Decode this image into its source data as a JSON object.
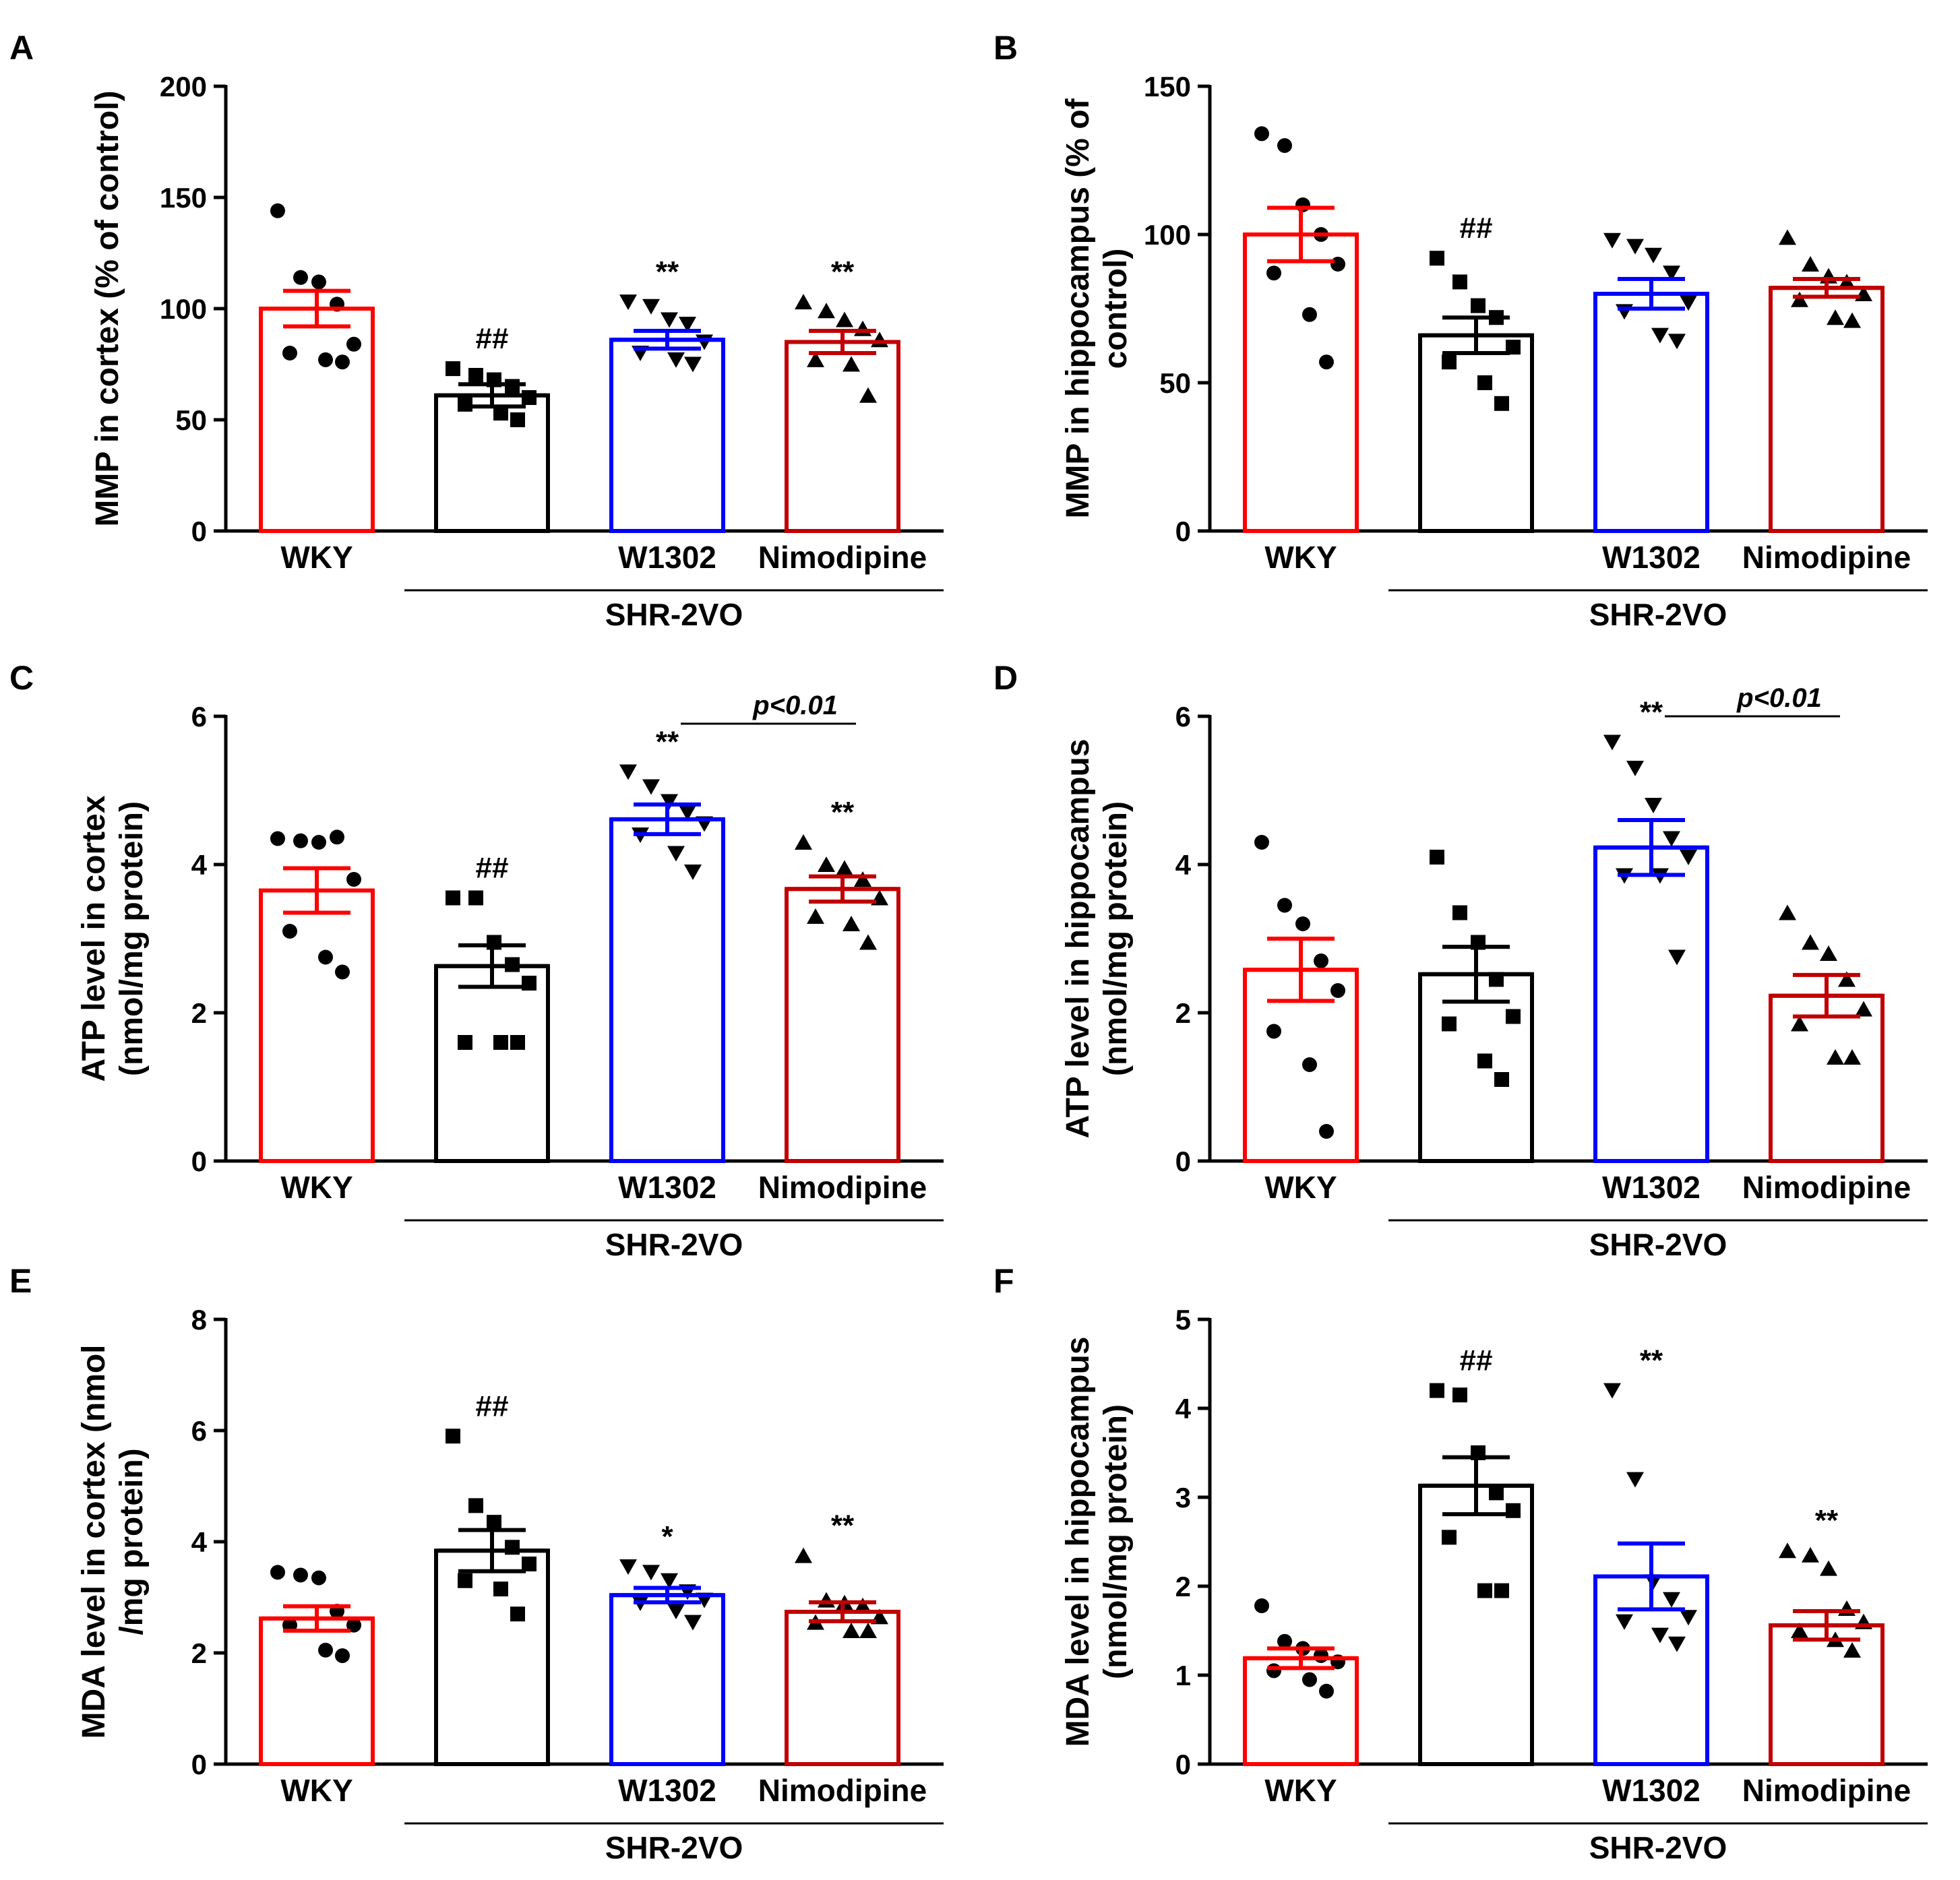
{
  "figure": {
    "colors": {
      "WKY": "#ff0000",
      "SHR-2VO": "#000000",
      "W1302": "#0000ff",
      "Nimodipine": "#c00000"
    },
    "category_labels": [
      "WKY",
      "",
      "W1302",
      "Nimodipine"
    ],
    "group_label": "SHR-2VO",
    "marker_shapes": [
      "circle",
      "square",
      "triangle-down",
      "triangle-up"
    ]
  },
  "chart_data": [
    {
      "id": "A",
      "type": "bar",
      "panel_letter": "A",
      "ylabel": [
        "MMP in cortex (% of control)"
      ],
      "ylim": [
        0,
        200
      ],
      "yticks": [
        0,
        50,
        100,
        150,
        200
      ],
      "categories": [
        "WKY",
        "SHR-2VO",
        "W1302",
        "Nimodipine"
      ],
      "values": [
        100,
        61,
        86,
        85
      ],
      "sem": [
        8,
        5,
        4,
        5
      ],
      "points": [
        [
          144,
          114,
          112,
          102,
          84,
          80,
          77,
          76
        ],
        [
          73,
          70,
          68,
          65,
          60,
          57,
          53,
          50
        ],
        [
          103,
          101,
          95,
          93,
          85,
          80,
          77,
          75
        ],
        [
          103,
          99,
          95,
          91,
          86,
          77,
          75,
          61
        ]
      ],
      "sig": [
        "",
        "##",
        "**",
        "**"
      ],
      "pbracket": null
    },
    {
      "id": "B",
      "type": "bar",
      "panel_letter": "B",
      "ylabel": [
        "MMP in hippocampus (% of",
        "control)"
      ],
      "ylim": [
        0,
        150
      ],
      "yticks": [
        0,
        50,
        100,
        150
      ],
      "categories": [
        "WKY",
        "SHR-2VO",
        "W1302",
        "Nimodipine"
      ],
      "values": [
        100,
        66,
        80,
        82
      ],
      "sem": [
        9,
        6,
        5,
        3
      ],
      "points": [
        [
          134,
          130,
          110,
          100,
          90,
          87,
          73,
          57
        ],
        [
          92,
          84,
          76,
          72,
          62,
          57,
          50,
          43
        ],
        [
          98,
          96,
          93,
          87,
          77,
          74,
          66,
          64
        ],
        [
          99,
          90,
          86,
          84,
          80,
          78,
          72,
          71
        ]
      ],
      "sig": [
        "",
        "##",
        "",
        ""
      ],
      "pbracket": null
    },
    {
      "id": "C",
      "type": "bar",
      "panel_letter": "C",
      "ylabel": [
        "ATP level in cortex",
        "(nmol/mg protein)"
      ],
      "ylim": [
        0,
        6
      ],
      "yticks": [
        0,
        2,
        4,
        6
      ],
      "categories": [
        "WKY",
        "SHR-2VO",
        "W1302",
        "Nimodipine"
      ],
      "values": [
        3.65,
        2.63,
        4.61,
        3.67
      ],
      "sem": [
        0.3,
        0.28,
        0.2,
        0.17
      ],
      "points": [
        [
          4.35,
          4.32,
          4.3,
          4.37,
          3.8,
          3.1,
          2.75,
          2.55
        ],
        [
          3.55,
          3.55,
          2.95,
          2.65,
          2.4,
          1.6,
          1.6,
          1.6
        ],
        [
          5.25,
          5.05,
          4.85,
          4.7,
          4.55,
          4.4,
          4.15,
          3.9
        ],
        [
          4.3,
          4.0,
          3.95,
          3.8,
          3.55,
          3.3,
          3.2,
          2.95
        ]
      ],
      "sig": [
        "",
        "##",
        "**",
        "**"
      ],
      "pbracket": {
        "from": 2,
        "to": 3,
        "label": "p<0.01",
        "y": 5.9
      }
    },
    {
      "id": "D",
      "type": "bar",
      "panel_letter": "D",
      "ylabel": [
        "ATP level in hippocampus",
        "(nmol/mg protein)"
      ],
      "ylim": [
        0,
        6
      ],
      "yticks": [
        0,
        2,
        4,
        6
      ],
      "categories": [
        "WKY",
        "SHR-2VO",
        "W1302",
        "Nimodipine"
      ],
      "values": [
        2.58,
        2.52,
        4.23,
        2.23
      ],
      "sem": [
        0.42,
        0.37,
        0.37,
        0.28
      ],
      "points": [
        [
          4.3,
          3.45,
          3.2,
          2.7,
          2.3,
          1.75,
          1.3,
          0.4
        ],
        [
          4.1,
          3.35,
          2.95,
          2.45,
          1.95,
          1.85,
          1.35,
          1.1
        ],
        [
          5.65,
          5.3,
          4.8,
          4.35,
          4.1,
          3.85,
          3.85,
          2.75
        ],
        [
          3.35,
          2.95,
          2.8,
          2.45,
          2.05,
          1.85,
          1.4,
          1.4
        ]
      ],
      "sig": [
        "",
        "",
        "**",
        ""
      ],
      "pbracket": {
        "from": 2,
        "to": 3,
        "label": "p<0.01",
        "y": 6.0
      }
    },
    {
      "id": "E",
      "type": "bar",
      "panel_letter": "E",
      "ylabel": [
        "MDA level in cortex (nmol",
        "/mg protein)"
      ],
      "ylim": [
        0,
        8
      ],
      "yticks": [
        0,
        2,
        4,
        6,
        8
      ],
      "categories": [
        "WKY",
        "SHR-2VO",
        "W1302",
        "Nimodipine"
      ],
      "values": [
        2.62,
        3.84,
        3.04,
        2.74
      ],
      "sem": [
        0.22,
        0.37,
        0.13,
        0.17
      ],
      "points": [
        [
          3.45,
          3.4,
          3.35,
          2.75,
          2.5,
          2.5,
          2.05,
          1.95
        ],
        [
          5.9,
          4.65,
          4.35,
          3.9,
          3.6,
          3.3,
          3.15,
          2.7
        ],
        [
          3.55,
          3.45,
          3.3,
          3.1,
          2.95,
          2.9,
          2.75,
          2.55
        ],
        [
          3.75,
          2.95,
          2.9,
          2.85,
          2.65,
          2.55,
          2.4,
          2.4
        ]
      ],
      "sig": [
        "",
        "##",
        "*",
        "**"
      ],
      "pbracket": null
    },
    {
      "id": "F",
      "type": "bar",
      "panel_letter": "F",
      "ylabel": [
        "MDA level in hippocampus",
        "(nmol/mg protein)"
      ],
      "ylim": [
        0,
        5
      ],
      "yticks": [
        0,
        1,
        2,
        3,
        4,
        5
      ],
      "categories": [
        "WKY",
        "SHR-2VO",
        "W1302",
        "Nimodipine"
      ],
      "values": [
        1.19,
        3.13,
        2.11,
        1.56
      ],
      "sem": [
        0.11,
        0.32,
        0.37,
        0.16
      ],
      "points": [
        [
          1.78,
          1.38,
          1.3,
          1.22,
          1.15,
          1.05,
          0.95,
          0.82
        ],
        [
          4.2,
          4.15,
          3.5,
          3.05,
          2.85,
          2.55,
          1.95,
          1.95
        ],
        [
          4.2,
          3.2,
          2.05,
          1.85,
          1.65,
          1.6,
          1.45,
          1.35
        ],
        [
          2.4,
          2.35,
          2.2,
          1.75,
          1.6,
          1.5,
          1.4,
          1.28
        ]
      ],
      "sig": [
        "",
        "##",
        "**",
        "**"
      ],
      "pbracket": null
    }
  ]
}
